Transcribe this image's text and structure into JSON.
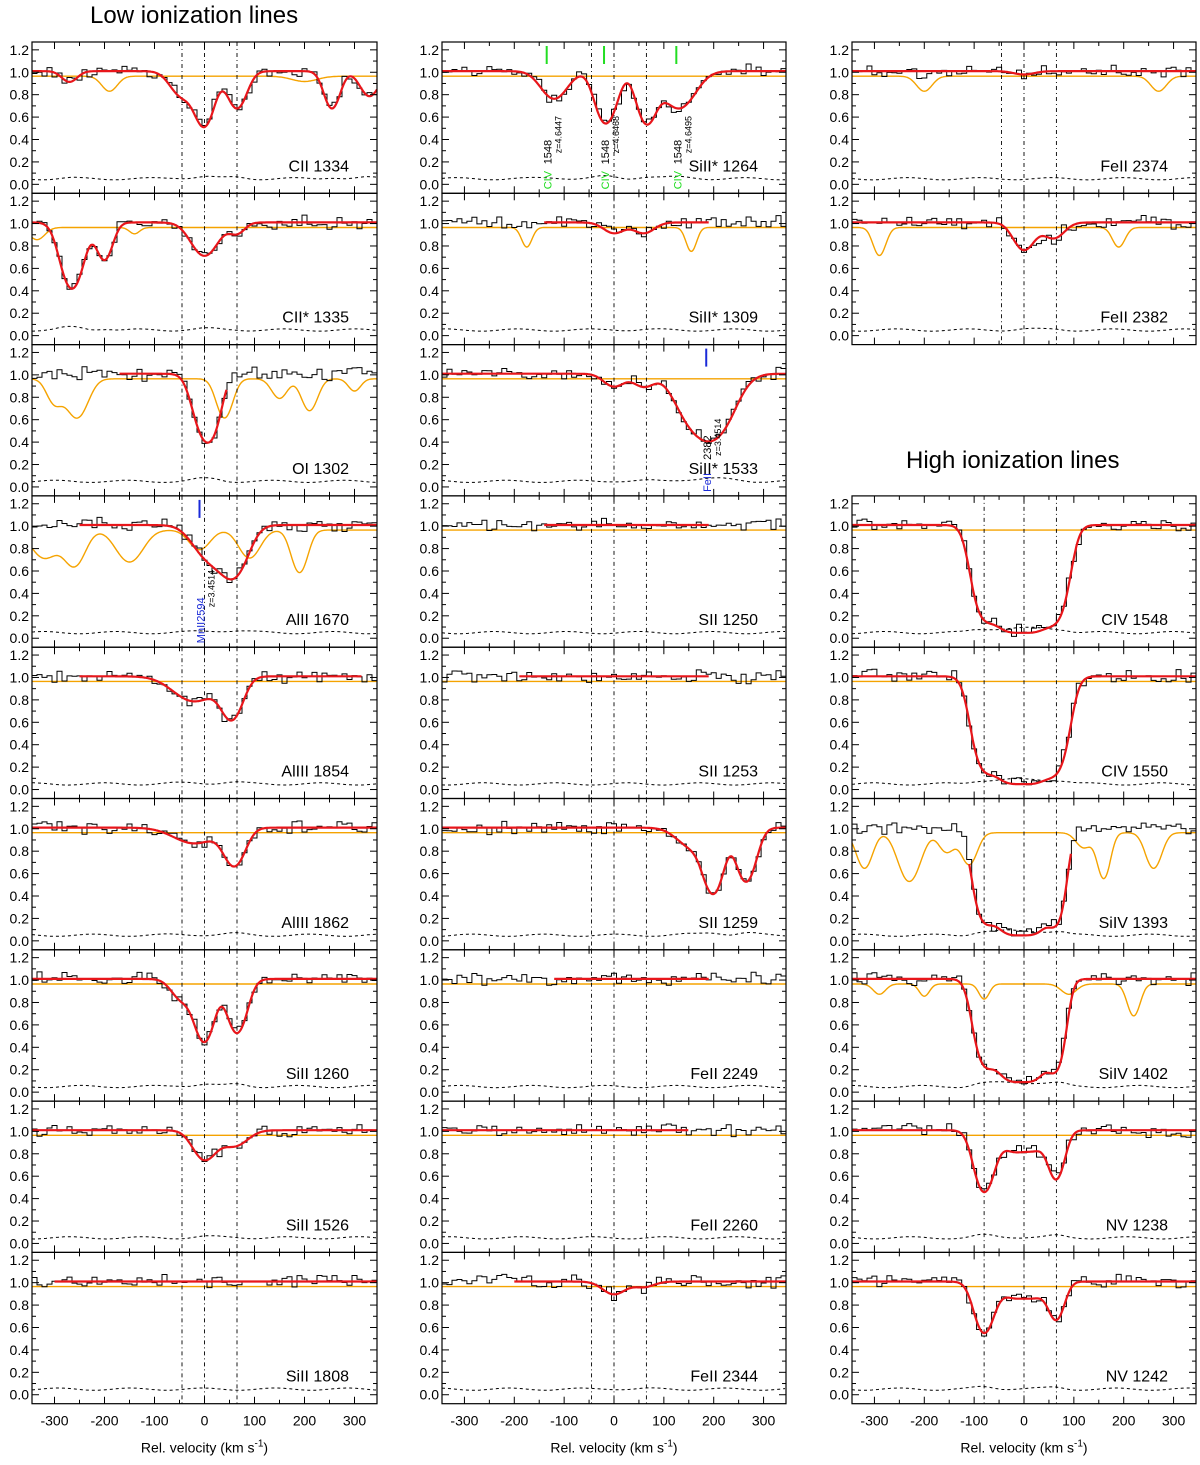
{
  "headers": {
    "low": "Low ionization lines",
    "high": "High ionization lines"
  },
  "axis": {
    "xlabel": "Rel. velocity (km s",
    "xlabel_sup": "-1",
    "xticks": [
      -300,
      -200,
      -100,
      0,
      100,
      200,
      300
    ],
    "xlim": [
      -345,
      345
    ],
    "ylim": [
      -0.08,
      1.27
    ],
    "yticks": [
      "0.0",
      "0.2",
      "0.4",
      "0.6",
      "0.8",
      "1.0",
      "1.2"
    ]
  },
  "colors": {
    "data": "#000000",
    "fit": "#e8161b",
    "contamination": "#f5a300",
    "error": "#000000",
    "civ_mark": "#22dd22",
    "blend_mark": "#1a2ad8"
  },
  "chart_data": {
    "type": "line",
    "description_of_series": [
      "normalized flux (histogram)",
      "Voigt profile fit",
      "contamination model",
      "1-sigma error"
    ],
    "panels": [
      {
        "id": "CII_1334",
        "label": "CII 1334",
        "column": 0,
        "row": 0,
        "vlines": [
          -45,
          0,
          65
        ],
        "comps": [
          [
            -45,
            0.25,
            22
          ],
          [
            0,
            0.65,
            18
          ],
          [
            65,
            0.4,
            18
          ]
        ],
        "contam": [
          [
            -190,
            0.15,
            15
          ],
          [
            200,
            0.05,
            25
          ]
        ],
        "extra": [
          [
            255,
            0.4,
            15
          ],
          [
            330,
            0.25,
            18
          ],
          [
            -270,
            0.1,
            15
          ]
        ],
        "fitRange": [
          -345,
          345
        ]
      },
      {
        "id": "CII_1335",
        "label": "CII* 1335",
        "column": 0,
        "row": 1,
        "vlines": [
          -45,
          0,
          65
        ],
        "comps": [
          [
            0,
            0.35,
            25
          ],
          [
            65,
            0.1,
            15
          ]
        ],
        "extra": [
          [
            -265,
            0.88,
            20
          ],
          [
            -200,
            0.4,
            15
          ]
        ],
        "contam": [
          [
            -335,
            0.12,
            15
          ],
          [
            -140,
            0.06,
            10
          ]
        ],
        "fitRange": [
          -345,
          345
        ]
      },
      {
        "id": "OI_1302",
        "label": "OI 1302",
        "column": 0,
        "row": 2,
        "vlines": [
          -45,
          0,
          65
        ],
        "comps": [
          [
            0,
            0.78,
            20
          ],
          [
            20,
            0.3,
            15
          ]
        ],
        "contam": [
          [
            -300,
            0.25,
            15
          ],
          [
            -255,
            0.45,
            20
          ],
          [
            40,
            0.45,
            15
          ],
          [
            150,
            0.2,
            15
          ],
          [
            210,
            0.35,
            15
          ],
          [
            300,
            0.12,
            12
          ]
        ],
        "fitRange": [
          -170,
          45
        ]
      },
      {
        "id": "AlII_1670",
        "label": "AlII 1670",
        "column": 0,
        "row": 3,
        "vlines": [
          -45,
          0,
          65
        ],
        "comps": [
          [
            10,
            0.35,
            30
          ],
          [
            60,
            0.55,
            25
          ]
        ],
        "contam": [
          [
            -320,
            0.3,
            25
          ],
          [
            -260,
            0.4,
            20
          ],
          [
            -150,
            0.35,
            25
          ],
          [
            -10,
            0.2,
            20
          ],
          [
            90,
            0.3,
            20
          ],
          [
            190,
            0.5,
            15
          ]
        ],
        "fitRange": [
          -250,
          345
        ],
        "marks": [
          {
            "v": -10,
            "color": "blend_mark",
            "ion": "MnII2594",
            "z": "z=3.4514"
          }
        ]
      },
      {
        "id": "AlIII_1854",
        "label": "AlIII 1854",
        "column": 0,
        "row": 4,
        "vlines": [
          -45,
          0,
          65
        ],
        "comps": [
          [
            -20,
            0.25,
            40
          ],
          [
            55,
            0.45,
            20
          ]
        ],
        "fitRange": [
          -250,
          315
        ]
      },
      {
        "id": "AlIII_1862",
        "label": "AlIII 1862",
        "column": 0,
        "row": 5,
        "vlines": [
          -45,
          0,
          65
        ],
        "comps": [
          [
            -20,
            0.15,
            40
          ],
          [
            60,
            0.4,
            20
          ]
        ],
        "fitRange": [
          -345,
          345
        ]
      },
      {
        "id": "SiII_1260",
        "label": "SiII 1260",
        "column": 0,
        "row": 6,
        "vlines": [
          -45,
          0,
          65
        ],
        "comps": [
          [
            -45,
            0.2,
            20
          ],
          [
            0,
            0.8,
            18
          ],
          [
            65,
            0.65,
            18
          ]
        ],
        "fitRange": [
          -345,
          345
        ]
      },
      {
        "id": "SiII_1526",
        "label": "SiII 1526",
        "column": 0,
        "row": 7,
        "vlines": [
          -45,
          0,
          65
        ],
        "comps": [
          [
            0,
            0.3,
            22
          ],
          [
            60,
            0.15,
            25
          ]
        ],
        "fitRange": [
          -345,
          345
        ]
      },
      {
        "id": "SiII_1808",
        "label": "SiII 1808",
        "column": 0,
        "row": 8,
        "vlines": [
          -45,
          0,
          65
        ],
        "comps": [],
        "fitRange": [
          -300,
          345
        ]
      },
      {
        "id": "SiII*_1264",
        "label": "SiII* 1264",
        "column": 1,
        "row": 0,
        "vlines": [
          -45,
          0,
          65
        ],
        "comps": [
          [
            -120,
            0.28,
            25
          ],
          [
            -20,
            0.55,
            18
          ],
          [
            0,
            0.15,
            15
          ],
          [
            65,
            0.6,
            18
          ],
          [
            130,
            0.4,
            30
          ]
        ],
        "fitRange": [
          -345,
          345
        ],
        "marks": [
          {
            "v": -135,
            "color": "civ_mark",
            "ion": "CIV",
            "wl": "1548",
            "z": "z=4.6447"
          },
          {
            "v": -20,
            "color": "civ_mark",
            "ion": "CIV",
            "wl": "1548",
            "z": "z=4.6468"
          },
          {
            "v": 125,
            "color": "civ_mark",
            "ion": "CIV",
            "wl": "1548",
            "z": "z=4.6495"
          }
        ]
      },
      {
        "id": "SiII*_1309",
        "label": "SiII* 1309",
        "column": 1,
        "row": 1,
        "vlines": [
          -45,
          0,
          65
        ],
        "comps": [
          [
            0,
            0.1,
            20
          ],
          [
            60,
            0.1,
            20
          ]
        ],
        "contam": [
          [
            -175,
            0.2,
            10
          ],
          [
            155,
            0.25,
            10
          ]
        ],
        "fitRange": [
          -140,
          190
        ]
      },
      {
        "id": "SiII*_1533",
        "label": "SiII* 1533",
        "column": 1,
        "row": 2,
        "vlines": [
          -45,
          0,
          65
        ],
        "comps": [
          [
            0,
            0.12,
            20
          ],
          [
            60,
            0.12,
            20
          ],
          [
            150,
            0.35,
            30
          ],
          [
            200,
            0.8,
            35
          ]
        ],
        "fitRange": [
          -345,
          345
        ],
        "marks": [
          {
            "v": 185,
            "color": "blend_mark",
            "ion": "FeII",
            "wl": "2382",
            "z": "z=3.4514"
          }
        ]
      },
      {
        "id": "SII_1250",
        "label": "SII 1250",
        "column": 1,
        "row": 3,
        "vlines": [
          -45,
          0,
          65
        ],
        "comps": [],
        "fitRange": [
          -140,
          190
        ]
      },
      {
        "id": "SII_1253",
        "label": "SII 1253",
        "column": 1,
        "row": 4,
        "vlines": [
          -45,
          0,
          65
        ],
        "comps": [],
        "fitRange": [
          -190,
          190
        ]
      },
      {
        "id": "SII_1259",
        "label": "SII 1259",
        "column": 1,
        "row": 5,
        "vlines": [
          -45,
          0,
          65
        ],
        "comps": [
          [
            160,
            0.2,
            30
          ],
          [
            200,
            0.8,
            18
          ],
          [
            265,
            0.65,
            18
          ]
        ],
        "fitRange": [
          -345,
          345
        ]
      },
      {
        "id": "FeII_2249",
        "label": "FeII 2249",
        "column": 1,
        "row": 6,
        "vlines": [
          -45,
          0,
          65
        ],
        "comps": [],
        "fitRange": [
          -120,
          190
        ]
      },
      {
        "id": "FeII_2260",
        "label": "FeII 2260",
        "column": 1,
        "row": 7,
        "vlines": [
          -45,
          0,
          65
        ],
        "comps": [],
        "fitRange": [
          -345,
          150
        ]
      },
      {
        "id": "FeII_2344",
        "label": "FeII 2344",
        "column": 1,
        "row": 8,
        "vlines": [
          -45,
          0,
          65
        ],
        "comps": [
          [
            0,
            0.12,
            22
          ],
          [
            60,
            0.05,
            20
          ]
        ],
        "fitRange": [
          -200,
          345
        ]
      },
      {
        "id": "FeII_2374",
        "label": "FeII 2374",
        "column": 2,
        "row": 0,
        "vlines": [
          -45,
          0,
          65
        ],
        "comps": [
          [
            0,
            0.03,
            20
          ]
        ],
        "contam": [
          [
            -200,
            0.15,
            15
          ],
          [
            270,
            0.15,
            15
          ]
        ],
        "fitRange": [
          -345,
          345
        ]
      },
      {
        "id": "FeII_2382",
        "label": "FeII 2382",
        "column": 2,
        "row": 1,
        "vlines": [
          -45,
          0,
          65
        ],
        "comps": [
          [
            0,
            0.28,
            20
          ],
          [
            60,
            0.15,
            20
          ]
        ],
        "contam": [
          [
            -290,
            0.3,
            12
          ],
          [
            190,
            0.2,
            12
          ]
        ],
        "fitRange": [
          -345,
          345
        ]
      },
      {
        "id": "CIV_1548",
        "label": "CIV 1548",
        "column": 2,
        "row": 3,
        "vlines": [
          -80,
          0,
          65
        ],
        "comps": [
          [
            -80,
            1.5,
            20
          ],
          [
            -30,
            2.5,
            25
          ],
          [
            20,
            2.5,
            25
          ],
          [
            65,
            1.5,
            20
          ]
        ],
        "fitRange": [
          -345,
          345
        ]
      },
      {
        "id": "CIV_1550",
        "label": "CIV 1550",
        "column": 2,
        "row": 4,
        "vlines": [
          -80,
          0,
          65
        ],
        "comps": [
          [
            -80,
            1.5,
            20
          ],
          [
            -30,
            2.5,
            25
          ],
          [
            20,
            2.5,
            25
          ],
          [
            65,
            1.5,
            20
          ]
        ],
        "fitRange": [
          -345,
          345
        ]
      },
      {
        "id": "SiIV_1393",
        "label": "SiIV 1393",
        "column": 2,
        "row": 5,
        "vlines": [
          -80,
          0,
          65
        ],
        "comps": [
          [
            -80,
            1.5,
            18
          ],
          [
            -30,
            2.5,
            25
          ],
          [
            20,
            2.5,
            25
          ],
          [
            65,
            1.5,
            15
          ]
        ],
        "contam": [
          [
            -320,
            0.4,
            15
          ],
          [
            -230,
            0.6,
            20
          ],
          [
            -155,
            0.2,
            15
          ],
          [
            -110,
            0.35,
            15
          ],
          [
            120,
            0.15,
            15
          ],
          [
            160,
            0.55,
            12
          ],
          [
            260,
            0.4,
            15
          ]
        ],
        "fitRange": [
          -110,
          95
        ]
      },
      {
        "id": "SiIV_1402",
        "label": "SiIV 1402",
        "column": 2,
        "row": 6,
        "vlines": [
          -80,
          0,
          65
        ],
        "comps": [
          [
            -80,
            1.2,
            18
          ],
          [
            -30,
            2.0,
            25
          ],
          [
            20,
            2.0,
            25
          ],
          [
            65,
            1.3,
            15
          ]
        ],
        "contam": [
          [
            -290,
            0.1,
            12
          ],
          [
            -200,
            0.12,
            10
          ],
          [
            -80,
            0.15,
            10
          ],
          [
            90,
            0.1,
            15
          ],
          [
            220,
            0.35,
            12
          ]
        ],
        "fitRange": [
          -345,
          345
        ]
      },
      {
        "id": "NV_1238",
        "label": "NV 1238",
        "column": 2,
        "row": 7,
        "vlines": [
          -80,
          0,
          65
        ],
        "comps": [
          [
            -80,
            0.78,
            18
          ],
          [
            -20,
            0.2,
            25
          ],
          [
            25,
            0.15,
            20
          ],
          [
            65,
            0.55,
            15
          ]
        ],
        "fitRange": [
          -345,
          345
        ]
      },
      {
        "id": "NV_1242",
        "label": "NV 1242",
        "column": 2,
        "row": 8,
        "vlines": [
          -80,
          0,
          65
        ],
        "comps": [
          [
            -80,
            0.6,
            18
          ],
          [
            -20,
            0.15,
            25
          ],
          [
            25,
            0.12,
            20
          ],
          [
            65,
            0.4,
            15
          ]
        ],
        "fitRange": [
          -345,
          345
        ]
      }
    ]
  }
}
